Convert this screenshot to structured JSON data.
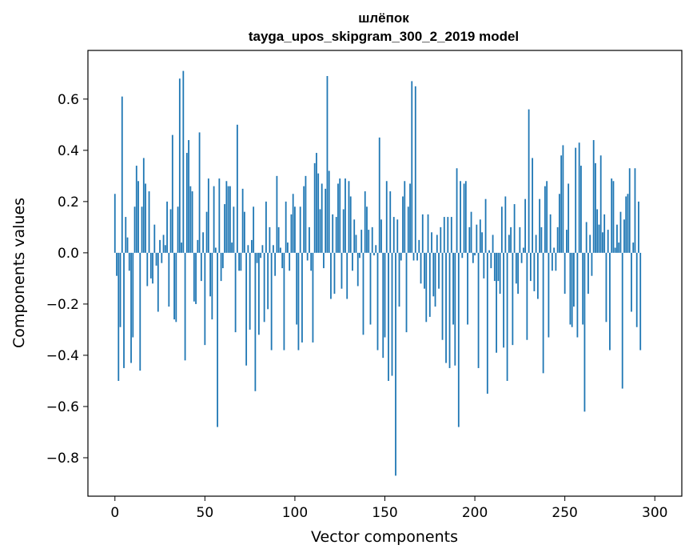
{
  "chart_data": {
    "type": "bar",
    "title": "шлёпок",
    "subtitle": "tayga_upos_skipgram_300_2_2019 model",
    "xlabel": "Vector components",
    "ylabel": "Components values",
    "xlim": [
      -15,
      315
    ],
    "ylim": [
      -0.95,
      0.79
    ],
    "xticks": [
      0,
      50,
      100,
      150,
      200,
      250,
      300
    ],
    "xtick_labels": [
      "0",
      "50",
      "100",
      "150",
      "200",
      "250",
      "300"
    ],
    "yticks": [
      -0.8,
      -0.6,
      -0.4,
      -0.2,
      0.0,
      0.2,
      0.4,
      0.6
    ],
    "ytick_labels": [
      "−0.8",
      "−0.6",
      "−0.4",
      "−0.2",
      "0.0",
      "0.2",
      "0.4",
      "0.6"
    ],
    "bar_color": "#1f77b4",
    "grid": false,
    "x_start": 0,
    "values": [
      0.23,
      -0.09,
      -0.5,
      -0.29,
      0.61,
      -0.45,
      0.14,
      0.06,
      -0.07,
      -0.43,
      -0.33,
      0.18,
      0.34,
      0.28,
      -0.46,
      0.18,
      0.37,
      0.27,
      -0.13,
      0.24,
      -0.1,
      -0.12,
      0.11,
      -0.05,
      -0.23,
      0.05,
      -0.04,
      0.07,
      0.03,
      0.2,
      -0.21,
      0.17,
      0.46,
      -0.26,
      -0.27,
      0.18,
      0.68,
      0.04,
      0.71,
      -0.42,
      0.39,
      0.44,
      0.26,
      0.24,
      -0.19,
      -0.2,
      0.05,
      0.47,
      -0.11,
      0.08,
      -0.36,
      0.16,
      0.29,
      -0.17,
      -0.26,
      0.26,
      0.02,
      -0.68,
      0.29,
      -0.11,
      -0.06,
      0.19,
      0.28,
      0.26,
      0.26,
      0.04,
      0.18,
      -0.31,
      0.5,
      -0.07,
      -0.07,
      0.25,
      0.16,
      -0.44,
      0.03,
      -0.3,
      0.05,
      0.18,
      -0.54,
      -0.04,
      -0.32,
      -0.02,
      0.03,
      -0.27,
      0.2,
      -0.22,
      0.1,
      -0.38,
      0.03,
      -0.09,
      0.3,
      0.1,
      0.02,
      -0.06,
      -0.38,
      0.2,
      0.04,
      -0.07,
      0.15,
      0.23,
      0.18,
      -0.28,
      -0.38,
      0.18,
      -0.35,
      0.26,
      0.3,
      -0.03,
      0.1,
      -0.07,
      -0.35,
      0.35,
      0.39,
      0.31,
      0.17,
      0.27,
      -0.06,
      0.25,
      0.69,
      0.32,
      -0.18,
      0.15,
      -0.16,
      0.14,
      0.27,
      0.29,
      -0.14,
      0.17,
      0.29,
      -0.18,
      0.28,
      0.22,
      -0.07,
      0.13,
      0.07,
      -0.13,
      -0.02,
      0.09,
      -0.32,
      0.24,
      0.18,
      0.09,
      -0.28,
      0.1,
      -0.01,
      0.03,
      -0.38,
      0.45,
      0.13,
      -0.41,
      -0.33,
      0.28,
      -0.5,
      0.24,
      -0.48,
      0.14,
      -0.87,
      0.13,
      -0.21,
      -0.03,
      0.22,
      0.28,
      -0.31,
      0.18,
      0.27,
      0.67,
      -0.03,
      0.65,
      -0.03,
      0.05,
      -0.12,
      0.15,
      -0.14,
      -0.27,
      0.15,
      -0.25,
      0.08,
      -0.17,
      -0.21,
      0.07,
      -0.14,
      0.1,
      -0.34,
      0.14,
      -0.43,
      0.14,
      -0.45,
      0.14,
      -0.28,
      -0.44,
      0.33,
      -0.68,
      0.28,
      -0.02,
      0.27,
      0.28,
      -0.28,
      0.1,
      0.16,
      -0.04,
      -0.01,
      0.11,
      -0.45,
      0.13,
      0.08,
      -0.1,
      0.21,
      -0.55,
      0.01,
      -0.06,
      0.07,
      -0.11,
      -0.39,
      -0.11,
      -0.16,
      0.18,
      -0.37,
      0.22,
      -0.5,
      0.07,
      0.1,
      -0.36,
      0.19,
      -0.12,
      -0.16,
      0.1,
      -0.04,
      0.02,
      0.21,
      -0.34,
      0.56,
      -0.11,
      0.37,
      -0.15,
      0.07,
      -0.18,
      0.21,
      0.1,
      -0.47,
      0.26,
      0.28,
      -0.33,
      0.15,
      -0.07,
      0.02,
      -0.07,
      0.1,
      0.23,
      0.38,
      0.42,
      -0.16,
      0.09,
      0.27,
      -0.28,
      -0.29,
      -0.21,
      0.41,
      -0.33,
      0.43,
      0.34,
      -0.28,
      -0.62,
      0.12,
      -0.16,
      0.07,
      -0.09,
      0.44,
      0.35,
      0.17,
      0.11,
      0.38,
      0.08,
      0.15,
      -0.27,
      0.09,
      -0.38,
      0.29,
      0.28,
      0.02,
      0.11,
      0.04,
      0.16,
      -0.53,
      0.13,
      0.22,
      0.23,
      0.33,
      -0.23,
      0.04,
      0.33,
      -0.29,
      0.2,
      -0.38
    ]
  }
}
